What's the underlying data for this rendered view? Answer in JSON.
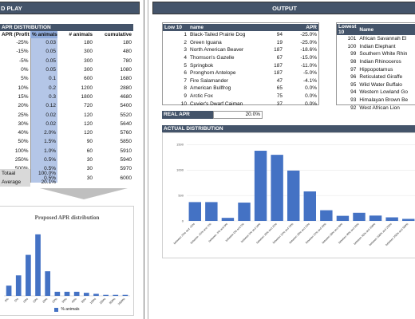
{
  "banners": {
    "left": "D PLAY",
    "right": "OUTPUT"
  },
  "apr_distribution": {
    "heading": "APR DISTRIBUTION",
    "columns": [
      "APR (Profit",
      "% animals",
      "# animals",
      "cumulative"
    ],
    "rows": [
      [
        "-25%",
        "0.03",
        "180",
        "180"
      ],
      [
        "-15%",
        "0.05",
        "300",
        "480"
      ],
      [
        "-5%",
        "0.05",
        "300",
        "780"
      ],
      [
        "0%",
        "0.05",
        "300",
        "1080"
      ],
      [
        "5%",
        "0.1",
        "600",
        "1680"
      ],
      [
        "10%",
        "0.2",
        "1200",
        "2880"
      ],
      [
        "15%",
        "0.3",
        "1800",
        "4680"
      ],
      [
        "20%",
        "0.12",
        "720",
        "5400"
      ],
      [
        "25%",
        "0.02",
        "120",
        "5520"
      ],
      [
        "30%",
        "0.02",
        "120",
        "5640"
      ],
      [
        "40%",
        "2.0%",
        "120",
        "5760"
      ],
      [
        "50%",
        "1.5%",
        "90",
        "5850"
      ],
      [
        "100%",
        "1.0%",
        "60",
        "5910"
      ],
      [
        "250%",
        "0.5%",
        "30",
        "5940"
      ],
      [
        "500%",
        "0.5%",
        "30",
        "5970"
      ],
      [
        "1000%",
        "0.5%",
        "30",
        "6000"
      ]
    ],
    "totals": [
      {
        "label": "Totaal",
        "value": "100.0%"
      },
      {
        "label": "Average",
        "value": "20.1%"
      }
    ]
  },
  "top10": {
    "columns": [
      "Low 10",
      "name",
      "",
      "APR"
    ],
    "rows": [
      [
        "1",
        "Black-Tailed Prairie Dog",
        "94",
        "-25.0%"
      ],
      [
        "2",
        "Green Iguana",
        "19",
        "-25.0%"
      ],
      [
        "3",
        "North American Beaver",
        "187",
        "-18.6%"
      ],
      [
        "4",
        "Thomson's Gazelle",
        "67",
        "-15.0%"
      ],
      [
        "5",
        "Springbok",
        "187",
        "-11.0%"
      ],
      [
        "6",
        "Pronghorn Antelope",
        "187",
        "-5.0%"
      ],
      [
        "7",
        "Fire Salamander",
        "47",
        "-4.1%"
      ],
      [
        "8",
        "American Bullfrog",
        "65",
        "0.0%"
      ],
      [
        "9",
        "Arctic Fox",
        "75",
        "0.0%"
      ],
      [
        "10",
        "Cuvier's Dwarf Caiman",
        "37",
        "0.0%"
      ]
    ]
  },
  "lowest10": {
    "columns": [
      "Lowest 10",
      "Name"
    ],
    "rows": [
      [
        "101",
        "African Savannah El"
      ],
      [
        "100",
        "Indian Elephant"
      ],
      [
        "99",
        "Southern White Rhin"
      ],
      [
        "98",
        "Indian Rhinoceros"
      ],
      [
        "97",
        "Hippopotamus"
      ],
      [
        "96",
        "Reticulated Giraffe"
      ],
      [
        "95",
        "Wild Water Buffalo"
      ],
      [
        "94",
        "Western Lowland Go"
      ],
      [
        "93",
        "Himalayan Brown Be"
      ],
      [
        "92",
        "West African Lion"
      ]
    ]
  },
  "real_apr": {
    "label": "REAL APR",
    "value": "20.0%"
  },
  "actual_distribution_heading": "ACTUAL DISTRIBUTION",
  "chart_data": [
    {
      "type": "bar",
      "title": "Proposed APR distribution",
      "categories": [
        "0%",
        "5%",
        "10%",
        "15%",
        "20%",
        "25%",
        "30%",
        "40%",
        "50%",
        "100%",
        "250%",
        "500%",
        "1000%"
      ],
      "series": [
        {
          "name": "% animals",
          "values": [
            0.05,
            0.1,
            0.2,
            0.3,
            0.12,
            0.02,
            0.02,
            0.02,
            0.015,
            0.01,
            0.005,
            0.005,
            0.005
          ]
        }
      ],
      "ylim": [
        0,
        0.35
      ],
      "legend": "bottom",
      "color": "#4472c4"
    },
    {
      "type": "bar",
      "title": "",
      "categories": [
        "between 25% and -15%",
        "between -15% and -5%",
        "between -5% and 0%",
        "between 0% and 5%",
        "between 5% and 10%",
        "between 10% and 15%",
        "between 15% and 20%",
        "between 20% and 25%",
        "between 25% and 30%",
        "between 30% and 40%",
        "between 40% and 50%",
        "between 50% and 100%",
        "between 100% and 250%",
        "between 250% and 500%"
      ],
      "values": [
        370,
        370,
        60,
        360,
        1380,
        1300,
        990,
        580,
        210,
        100,
        160,
        105,
        70,
        40
      ],
      "yticks": [
        0,
        500,
        1000,
        1500
      ],
      "ylim": [
        0,
        1600
      ],
      "grid": true,
      "color": "#4472c4"
    }
  ]
}
